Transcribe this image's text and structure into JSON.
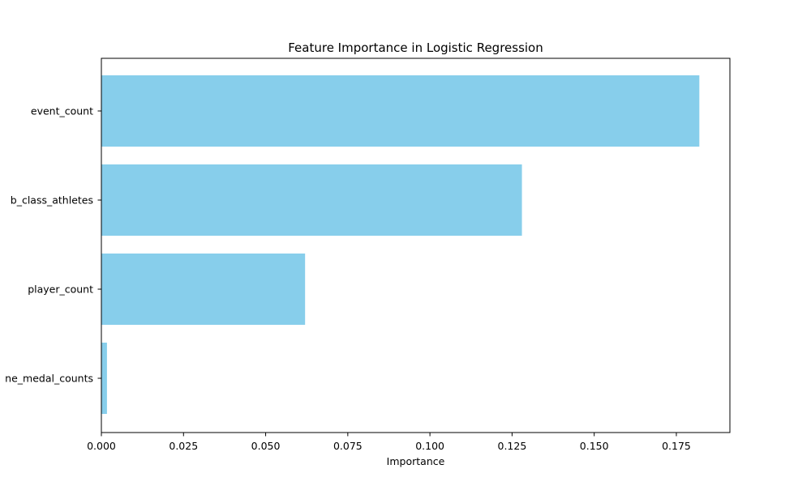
{
  "chart_data": {
    "type": "bar",
    "orientation": "horizontal",
    "title": "Feature Importance in Logistic Regression",
    "xlabel": "Importance",
    "ylabel": "",
    "categories": [
      "event_count",
      "b_class_athletes",
      "player_count",
      "ne_medal_counts"
    ],
    "values": [
      0.182,
      0.128,
      0.062,
      0.0017
    ],
    "xlim": [
      0,
      0.1913
    ],
    "xticks": [
      0.0,
      0.025,
      0.05,
      0.075,
      0.1,
      0.125,
      0.15,
      0.175
    ],
    "xtick_labels": [
      "0.000",
      "0.025",
      "0.050",
      "0.075",
      "0.100",
      "0.125",
      "0.150",
      "0.175"
    ],
    "bar_color": "#87CEEB",
    "grid": false,
    "legend": "none"
  }
}
